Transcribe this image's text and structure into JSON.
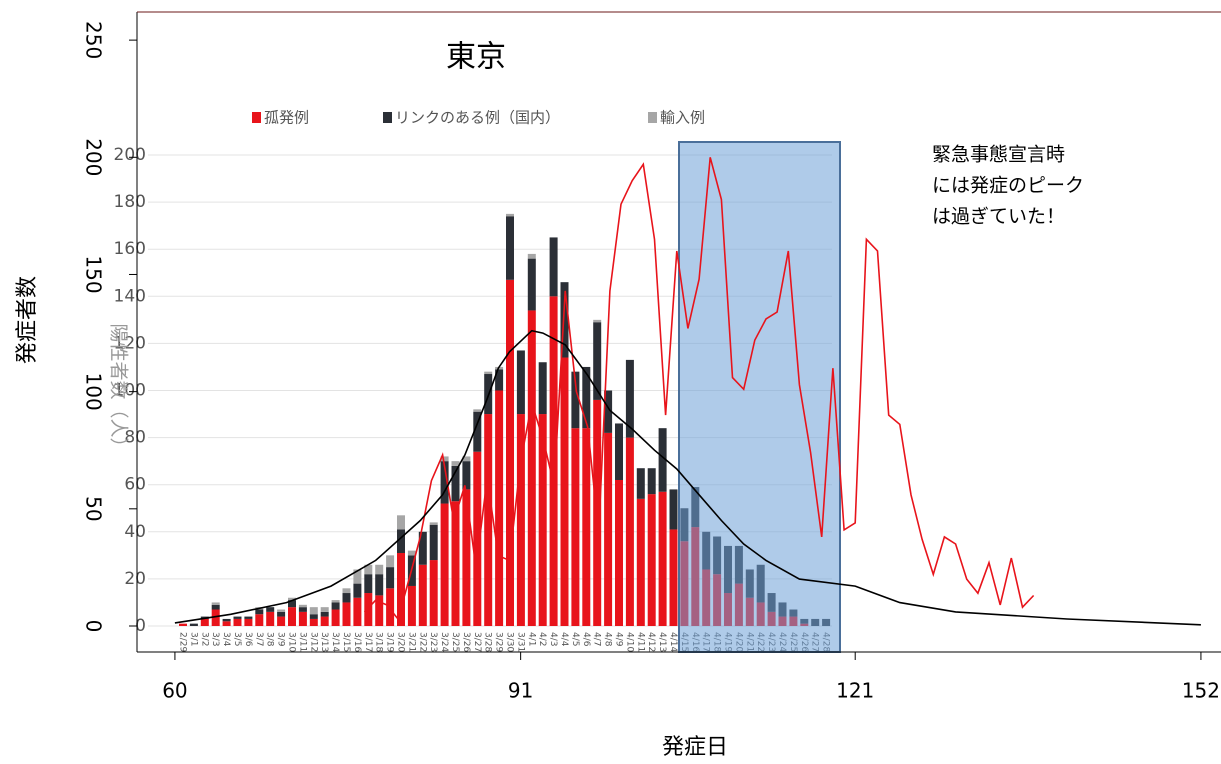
{
  "chart_data": [
    {
      "type": "line",
      "x_label": "発症日",
      "y_label": "発症者数",
      "annotation": [
        "緊急事態宣言時",
        "には発症のピーク",
        "は過ぎていた！"
      ],
      "xlim": [
        56.6,
        153.8
      ],
      "ylim": [
        -11.1,
        262
      ],
      "xticks": [
        60,
        91,
        121,
        152
      ],
      "yticks": [
        0,
        50,
        100,
        150,
        200,
        250
      ],
      "series": [
        {
          "color": "#e8141b",
          "x": [
            77,
            78,
            79,
            80,
            81,
            82,
            83,
            84,
            85,
            86,
            87,
            88,
            89,
            90,
            91,
            92,
            93,
            94,
            95,
            96,
            97,
            98,
            99,
            100,
            101,
            102,
            103,
            104,
            105,
            106,
            107,
            108,
            109,
            110,
            111,
            112,
            113,
            114,
            115,
            116,
            117,
            118,
            119,
            120,
            121,
            122,
            123,
            124,
            125,
            126,
            127,
            128,
            129,
            130,
            131,
            132,
            133,
            134,
            135,
            136,
            137
          ],
          "values": [
            6,
            11,
            9,
            3,
            20,
            38,
            62,
            73,
            45,
            60,
            25,
            63,
            30,
            28,
            70,
            95,
            80,
            60,
            143,
            100,
            85,
            40,
            143,
            180,
            190,
            197,
            165,
            90,
            160,
            127,
            148,
            200,
            182,
            106,
            101,
            122,
            131,
            134,
            160,
            103,
            74,
            38,
            110,
            41,
            44,
            165,
            160,
            90,
            86,
            56,
            37,
            22,
            38,
            35,
            20,
            14,
            27,
            9,
            29,
            8,
            13
          ]
        },
        {
          "color": "#000000",
          "x": [
            60,
            65,
            70,
            74,
            78,
            82,
            84,
            86,
            88,
            89,
            90,
            92,
            93,
            95,
            97,
            99,
            101,
            103,
            105,
            107,
            109,
            111,
            113,
            116,
            121,
            125,
            130,
            140,
            152
          ],
          "values": [
            1.3,
            5,
            10,
            17,
            28,
            45,
            56,
            73,
            97,
            110,
            117,
            126,
            125,
            120,
            107,
            92,
            84,
            75,
            67,
            56,
            45,
            35,
            28,
            20,
            17,
            10,
            6,
            3,
            0.5
          ]
        }
      ]
    },
    {
      "type": "bar",
      "title": "東京",
      "y_label": "陽性者数（人）",
      "ylim": [
        0,
        200
      ],
      "yticks": [
        0,
        20,
        40,
        60,
        80,
        100,
        120,
        140,
        160,
        180,
        200
      ],
      "grid": true,
      "stacked": true,
      "categories": [
        "2/29",
        "3/1",
        "3/2",
        "3/3",
        "3/4",
        "3/5",
        "3/6",
        "3/7",
        "3/8",
        "3/9",
        "3/10",
        "3/11",
        "3/12",
        "3/13",
        "3/14",
        "3/15",
        "3/16",
        "3/17",
        "3/18",
        "3/19",
        "3/20",
        "3/21",
        "3/22",
        "3/23",
        "3/24",
        "3/25",
        "3/26",
        "3/27",
        "3/28",
        "3/29",
        "3/30",
        "3/31",
        "4/1",
        "4/2",
        "4/3",
        "4/4",
        "4/5",
        "4/6",
        "4/7",
        "4/8",
        "4/9",
        "4/10",
        "4/11",
        "4/12",
        "4/13",
        "4/14",
        "4/15",
        "4/16",
        "4/17",
        "4/18",
        "4/19",
        "4/20",
        "4/21",
        "4/22",
        "4/23",
        "4/24",
        "4/25",
        "4/26",
        "4/27",
        "4/28"
      ],
      "series": [
        {
          "name": "孤発例",
          "color": "#e8141b",
          "values": [
            1,
            0,
            3,
            7,
            2,
            3,
            3,
            5,
            6,
            4,
            8,
            6,
            3,
            4,
            7,
            10,
            12,
            14,
            13,
            16,
            31,
            17,
            26,
            28,
            52,
            53,
            58,
            74,
            90,
            100,
            147,
            90,
            134,
            90,
            140,
            114,
            84,
            84,
            96,
            82,
            62,
            80,
            54,
            56,
            57,
            41,
            36,
            42,
            24,
            22,
            14,
            18,
            12,
            10,
            6,
            4,
            4,
            1,
            0,
            0
          ]
        },
        {
          "name": "リンクのある例（国内）",
          "color": "#2b2f36",
          "values": [
            0,
            1,
            1,
            2,
            1,
            1,
            1,
            2,
            2,
            2,
            3,
            2,
            2,
            2,
            3,
            4,
            6,
            8,
            9,
            9,
            10,
            13,
            14,
            15,
            18,
            15,
            12,
            17,
            17,
            9,
            27,
            27,
            22,
            22,
            25,
            32,
            24,
            26,
            33,
            18,
            24,
            33,
            13,
            11,
            27,
            17,
            14,
            17,
            16,
            16,
            20,
            16,
            12,
            16,
            8,
            6,
            3,
            2,
            3,
            3
          ]
        },
        {
          "name": "輸入例",
          "color": "#a6a6a6",
          "values": [
            0,
            0,
            0,
            1,
            0,
            0,
            0,
            1,
            0,
            1,
            1,
            1,
            3,
            2,
            1,
            2,
            6,
            4,
            4,
            5,
            6,
            2,
            0,
            1,
            2,
            2,
            2,
            1,
            1,
            1,
            1,
            0,
            2,
            0,
            0,
            0,
            0,
            0,
            1,
            0,
            0,
            0,
            0,
            0,
            0,
            0,
            0,
            0,
            0,
            0,
            0,
            0,
            0,
            0,
            0,
            0,
            0,
            0,
            0,
            0
          ]
        }
      ]
    }
  ]
}
